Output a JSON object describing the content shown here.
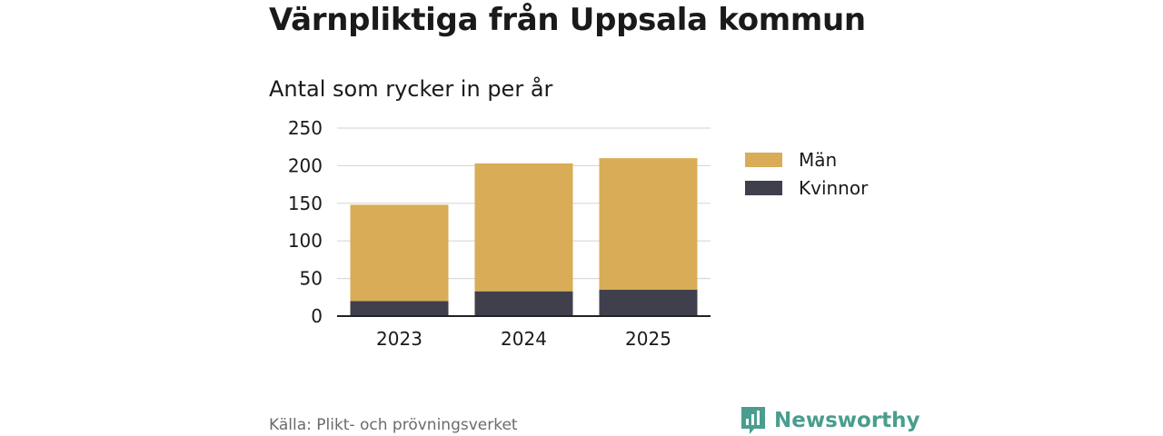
{
  "header": {
    "title": "Värnpliktiga från Uppsala kommun",
    "subtitle": "Antal som rycker in per år"
  },
  "footer": {
    "source": "Källa: Plikt- och prövningsverket",
    "brand": "Newsworthy"
  },
  "colors": {
    "men": "#d9ac57",
    "women": "#403f4c",
    "grid": "#d9d9d9",
    "axis": "#222222",
    "brand": "#4a9d8f"
  },
  "chart_data": {
    "type": "bar",
    "stacked": true,
    "categories": [
      "2023",
      "2024",
      "2025"
    ],
    "series": [
      {
        "name": "Kvinnor",
        "values": [
          20,
          33,
          35
        ]
      },
      {
        "name": "Män",
        "values": [
          128,
          170,
          175
        ]
      }
    ],
    "ylim": [
      0,
      250
    ],
    "yticks": [
      0,
      50,
      100,
      150,
      200,
      250
    ],
    "grid": true,
    "legend_position": "right",
    "legend": [
      "Män",
      "Kvinnor"
    ]
  }
}
